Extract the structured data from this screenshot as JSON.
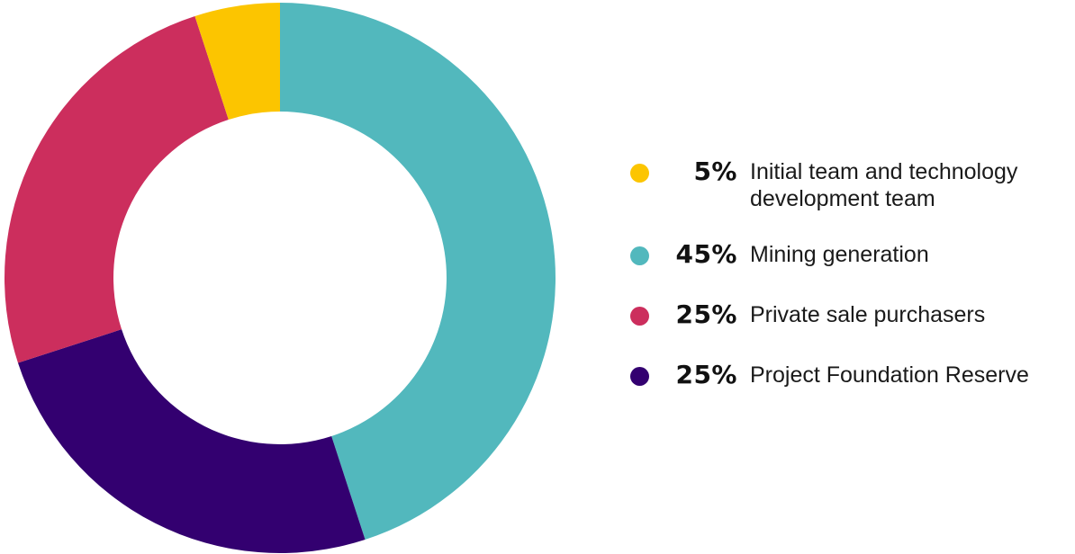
{
  "chart_data": {
    "type": "pie",
    "donut": true,
    "start_angle_deg": 0,
    "direction": "clockwise",
    "legend_position": "right",
    "categories": [
      "Mining generation",
      "Project Foundation Reserve",
      "Private sale purchasers",
      "Initial team and technology development team"
    ],
    "values": [
      45,
      25,
      25,
      5
    ],
    "colors": [
      "#52b8bd",
      "#330070",
      "#cc2e5d",
      "#fcc500"
    ],
    "legend": [
      {
        "pct": "5%",
        "label": "Initial team and technology development team",
        "color": "#fcc500"
      },
      {
        "pct": "45%",
        "label": "Mining generation",
        "color": "#52b8bd"
      },
      {
        "pct": "25%",
        "label": "Private sale purchasers",
        "color": "#cc2e5d"
      },
      {
        "pct": "25%",
        "label": "Project Foundation Reserve",
        "color": "#330070"
      }
    ]
  }
}
